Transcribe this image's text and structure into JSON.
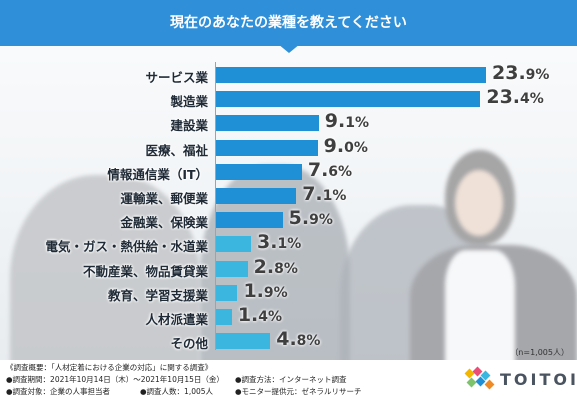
{
  "header": {
    "title": "現在のあなたの業種を教えてください"
  },
  "colors": {
    "primary_bar": "#1f8fd6",
    "secondary_bar": "#3bb6de",
    "header": "#2f8fd8"
  },
  "chart_data": {
    "type": "bar",
    "orientation": "horizontal",
    "title": "現在のあなたの業種を教えてください",
    "unit": "%",
    "categories": [
      "サービス業",
      "製造業",
      "建設業",
      "医療、福祉",
      "情報通信業（IT）",
      "運輸業、郵便業",
      "金融業、保険業",
      "電気・ガス・熱供給・水道業",
      "不動産業、物品賃貸業",
      "教育、学習支援業",
      "人材派遣業",
      "その他"
    ],
    "values": [
      23.9,
      23.4,
      9.1,
      9.0,
      7.6,
      7.1,
      5.9,
      3.1,
      2.8,
      1.9,
      1.4,
      4.8
    ],
    "value_labels": [
      {
        "int": "23.",
        "dec": "9%"
      },
      {
        "int": "23.",
        "dec": "4%"
      },
      {
        "int": "9.",
        "dec": "1%"
      },
      {
        "int": "9.",
        "dec": "0%"
      },
      {
        "int": "7.",
        "dec": "6%"
      },
      {
        "int": "7.",
        "dec": "1%"
      },
      {
        "int": "5.",
        "dec": "9%"
      },
      {
        "int": "3.",
        "dec": "1%"
      },
      {
        "int": "2.",
        "dec": "8%"
      },
      {
        "int": "1.",
        "dec": "9%"
      },
      {
        "int": "1.",
        "dec": "4%"
      },
      {
        "int": "4.",
        "dec": "8%"
      }
    ],
    "grid": false,
    "legend": "none"
  },
  "footer": {
    "sample_size": "（n=1,005人）",
    "survey_title": "《調査概要：「人材定着における企業の対応」に関する調査》",
    "period": "●調査期間：2021年10月14日（木）〜2021年10月15日（金）",
    "method": "●調査方法：インターネット調査",
    "target": "●調査対象：企業の人事担当者",
    "respondents": "●調査人数：1,005人",
    "provider": "●モニター提供元：ゼネラルリサーチ"
  },
  "logo": {
    "text": "TOITOI",
    "name": "toitoi-logo"
  }
}
